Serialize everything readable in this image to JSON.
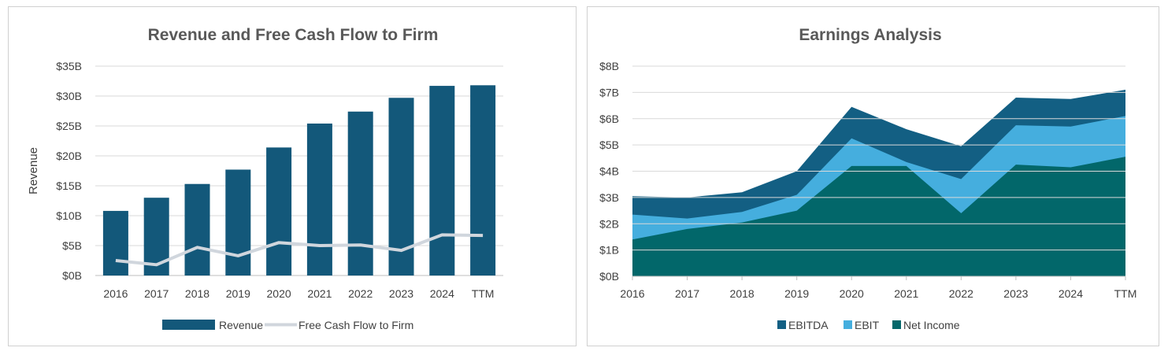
{
  "colors": {
    "revenue": "#13587A",
    "fcff": "#D0D6DD",
    "ebitda": "#135F83",
    "ebit": "#45AEDE",
    "net_income": "#02676A",
    "grid": "#D9D9D9",
    "axis": "#BFBFBF"
  },
  "chart_data": [
    {
      "type": "bar",
      "title": "Revenue and Free Cash Flow to Firm",
      "xlabel": "",
      "ylabel": "Revenue",
      "categories": [
        "2016",
        "2017",
        "2018",
        "2019",
        "2020",
        "2021",
        "2022",
        "2023",
        "2024",
        "TTM"
      ],
      "ylim": [
        0,
        35
      ],
      "yticks": [
        {
          "value": 0,
          "label": "$0B"
        },
        {
          "value": 5,
          "label": "$5B"
        },
        {
          "value": 10,
          "label": "$10B"
        },
        {
          "value": 15,
          "label": "$15B"
        },
        {
          "value": 20,
          "label": "$20B"
        },
        {
          "value": 25,
          "label": "$25B"
        },
        {
          "value": 30,
          "label": "$30B"
        },
        {
          "value": 35,
          "label": "$35B"
        }
      ],
      "series": [
        {
          "name": "Revenue",
          "kind": "bar",
          "color": "#13587A",
          "values": [
            10.8,
            13.0,
            15.3,
            17.7,
            21.4,
            25.4,
            27.4,
            29.7,
            31.7,
            31.8
          ]
        },
        {
          "name": "Free Cash Flow to Firm",
          "kind": "line",
          "color": "#D0D6DD",
          "values": [
            2.5,
            1.8,
            4.7,
            3.3,
            5.5,
            5.0,
            5.1,
            4.2,
            6.8,
            6.7
          ]
        }
      ],
      "grid": true,
      "legend": "bottom"
    },
    {
      "type": "area",
      "title": "Earnings Analysis",
      "xlabel": "",
      "ylabel": "",
      "categories": [
        "2016",
        "2017",
        "2018",
        "2019",
        "2020",
        "2021",
        "2022",
        "2023",
        "2024",
        "TTM"
      ],
      "ylim": [
        0,
        8
      ],
      "yticks": [
        {
          "value": 0,
          "label": "$0B"
        },
        {
          "value": 1,
          "label": "$1B"
        },
        {
          "value": 2,
          "label": "$2B"
        },
        {
          "value": 3,
          "label": "$3B"
        },
        {
          "value": 4,
          "label": "$4B"
        },
        {
          "value": 5,
          "label": "$5B"
        },
        {
          "value": 6,
          "label": "$6B"
        },
        {
          "value": 7,
          "label": "$7B"
        },
        {
          "value": 8,
          "label": "$8B"
        }
      ],
      "series": [
        {
          "name": "EBITDA",
          "color": "#135F83",
          "values": [
            3.05,
            3.0,
            3.2,
            4.0,
            6.45,
            5.6,
            4.95,
            6.8,
            6.75,
            7.1
          ]
        },
        {
          "name": "EBIT",
          "color": "#45AEDE",
          "values": [
            2.35,
            2.2,
            2.45,
            3.1,
            5.25,
            4.35,
            3.7,
            5.75,
            5.7,
            6.1
          ]
        },
        {
          "name": "Net Income",
          "color": "#02676A",
          "values": [
            1.4,
            1.8,
            2.05,
            2.5,
            4.2,
            4.2,
            2.4,
            4.25,
            4.15,
            4.55
          ]
        }
      ],
      "grid": true,
      "legend": "bottom"
    }
  ]
}
